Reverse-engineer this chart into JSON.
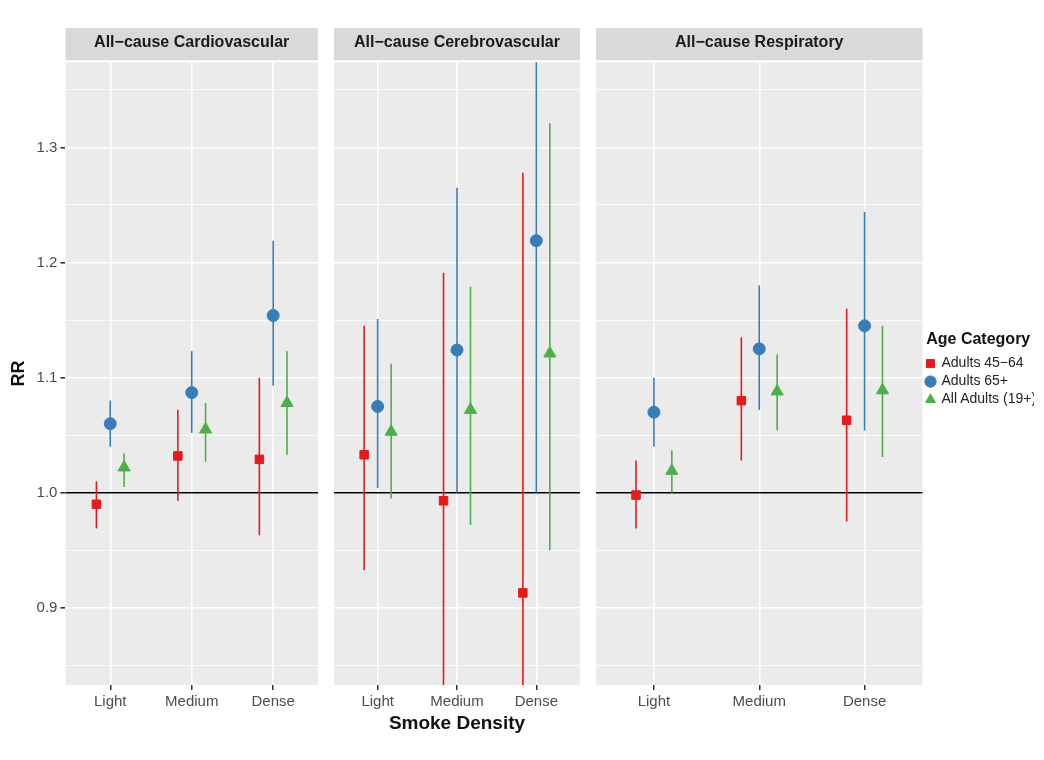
{
  "chart_data": [
    {
      "type": "scatter",
      "title": "All−cause Cardiovascular",
      "ylabel": "RR",
      "categories": [
        "Light",
        "Medium",
        "Dense"
      ],
      "ylim": [
        0.833,
        1.374
      ],
      "yticks": [
        {
          "value": 0.85,
          "label": null
        },
        0.9,
        {
          "value": 0.95,
          "label": null
        },
        {
          "value": 1.0,
          "label": "1.0"
        },
        {
          "value": 1.05,
          "label": null
        },
        1.1,
        {
          "value": 1.15,
          "label": null
        },
        1.2,
        {
          "value": 1.25,
          "label": null
        },
        1.3,
        {
          "value": 1.35,
          "label": null
        }
      ],
      "grid": true,
      "legend": false,
      "ref_lines": [
        {
          "axis": "y",
          "value": 1.0,
          "color": "#000000"
        }
      ],
      "series": [
        {
          "color": "#e41a1c",
          "marker": "square",
          "values": [
            0.99,
            1.032,
            1.029
          ],
          "errors": [
            [
              0.969,
              1.01
            ],
            [
              0.993,
              1.072
            ],
            [
              0.963,
              1.1
            ]
          ]
        },
        {
          "color": "#377eb8",
          "marker": "circle",
          "values": [
            1.06,
            1.087,
            1.154
          ],
          "errors": [
            [
              1.04,
              1.08
            ],
            [
              1.052,
              1.123
            ],
            [
              1.093,
              1.219
            ]
          ]
        },
        {
          "color": "#4daf4a",
          "marker": "triangle",
          "values": [
            1.022,
            1.055,
            1.078
          ],
          "errors": [
            [
              1.005,
              1.034
            ],
            [
              1.027,
              1.078
            ],
            [
              1.033,
              1.123
            ]
          ]
        }
      ]
    },
    {
      "type": "scatter",
      "title": "All−cause Cerebrovascular",
      "xlabel": "Smoke Density",
      "categories": [
        "Light",
        "Medium",
        "Dense"
      ],
      "ylim": [
        0.833,
        1.374
      ],
      "yticks": [
        {
          "value": 0.85,
          "label": null
        },
        0.9,
        {
          "value": 0.95,
          "label": null
        },
        1.0,
        {
          "value": 1.05,
          "label": null
        },
        1.1,
        {
          "value": 1.15,
          "label": null
        },
        1.2,
        {
          "value": 1.25,
          "label": null
        },
        1.3,
        {
          "value": 1.35,
          "label": null
        }
      ],
      "tick_labels": "x",
      "grid": true,
      "legend": false,
      "ref_lines": [
        {
          "axis": "y",
          "value": 1.0,
          "color": "#000000"
        }
      ],
      "series": [
        {
          "color": "#e41a1c",
          "marker": "square",
          "values": [
            1.033,
            0.993,
            0.913
          ],
          "errors": [
            [
              0.933,
              1.145
            ],
            [
              0.833,
              1.191
            ],
            [
              0.833,
              1.278
            ]
          ]
        },
        {
          "color": "#377eb8",
          "marker": "circle",
          "values": [
            1.075,
            1.124,
            1.219
          ],
          "errors": [
            [
              1.004,
              1.151
            ],
            [
              1.0,
              1.265
            ],
            [
              1.0,
              1.374
            ]
          ]
        },
        {
          "color": "#4daf4a",
          "marker": "triangle",
          "values": [
            1.053,
            1.072,
            1.121
          ],
          "errors": [
            [
              0.995,
              1.112
            ],
            [
              0.972,
              1.179
            ],
            [
              0.95,
              1.321
            ]
          ]
        }
      ]
    },
    {
      "type": "scatter",
      "title": "All−cause Respiratory",
      "legend_title": "Age Category",
      "categories": [
        "Light",
        "Medium",
        "Dense"
      ],
      "ylim": [
        0.833,
        1.374
      ],
      "yticks": [
        {
          "value": 0.85,
          "label": null
        },
        0.9,
        {
          "value": 0.95,
          "label": null
        },
        1.0,
        {
          "value": 1.05,
          "label": null
        },
        1.1,
        {
          "value": 1.15,
          "label": null
        },
        1.2,
        {
          "value": 1.25,
          "label": null
        },
        1.3,
        {
          "value": 1.35,
          "label": null
        }
      ],
      "tick_labels": "x",
      "grid": true,
      "legend": "right",
      "ref_lines": [
        {
          "axis": "y",
          "value": 1.0,
          "color": "#000000"
        }
      ],
      "series": [
        {
          "name": "Adults 45−64",
          "color": "#e41a1c",
          "marker": "square",
          "values": [
            0.998,
            1.08,
            1.063
          ],
          "errors": [
            [
              0.969,
              1.028
            ],
            [
              1.028,
              1.135
            ],
            [
              0.975,
              1.16
            ]
          ]
        },
        {
          "name": "Adults 65+",
          "color": "#377eb8",
          "marker": "circle",
          "values": [
            1.07,
            1.125,
            1.145
          ],
          "errors": [
            [
              1.04,
              1.1
            ],
            [
              1.072,
              1.18
            ],
            [
              1.054,
              1.244
            ]
          ]
        },
        {
          "name": "All Adults (19+)",
          "color": "#4daf4a",
          "marker": "triangle",
          "values": [
            1.019,
            1.088,
            1.089
          ],
          "errors": [
            [
              1.0,
              1.037
            ],
            [
              1.054,
              1.12
            ],
            [
              1.031,
              1.145
            ]
          ]
        }
      ]
    }
  ]
}
